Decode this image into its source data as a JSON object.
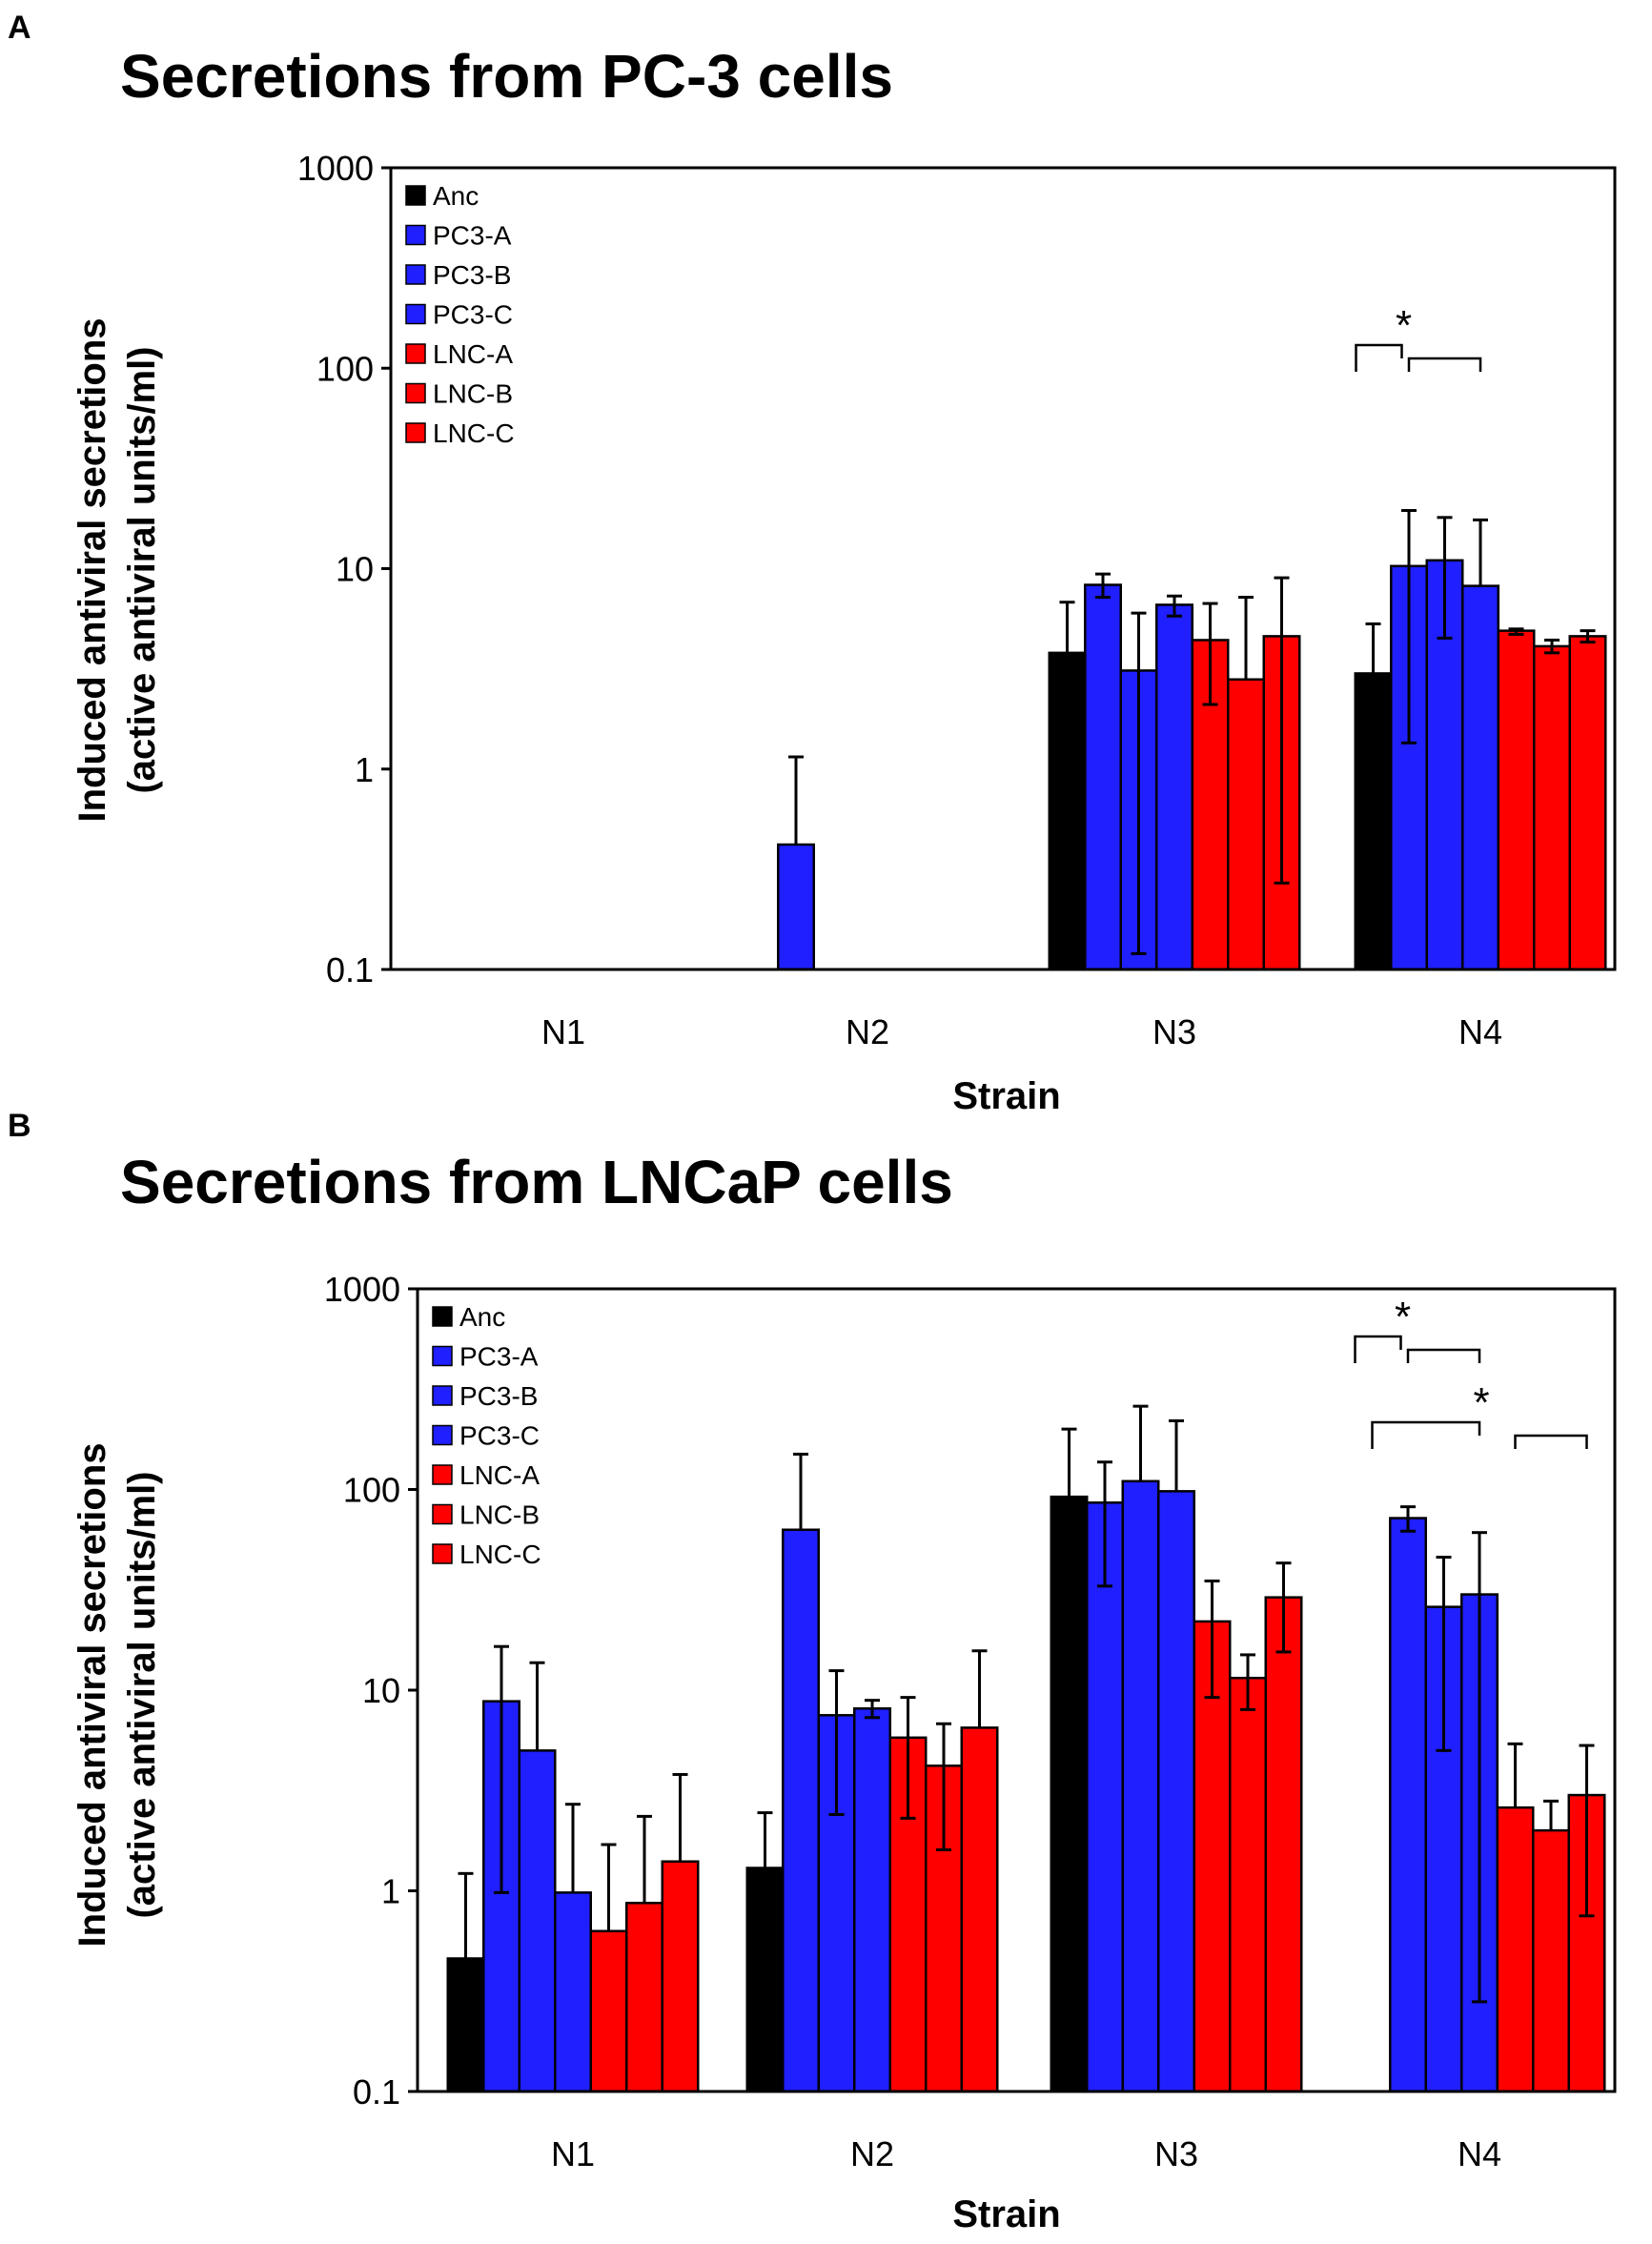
{
  "chart_data": [
    {
      "panel_letter": "A",
      "type": "bar",
      "title": "Secretions from PC-3 cells",
      "xlabel": "Strain",
      "ylabel_line1": "Induced antiviral secretions",
      "ylabel_line2": "(active antiviral units/ml)",
      "yscale": "log",
      "ylim": [
        0.1,
        1000
      ],
      "yticks": [
        "0.1",
        "1",
        "10",
        "100",
        "1000"
      ],
      "categories": [
        "N1",
        "N2",
        "N3",
        "N4"
      ],
      "legend_position": "top-left",
      "series": [
        {
          "name": "Anc",
          "color": "#000000",
          "values": [
            null,
            null,
            3.8,
            3.0
          ],
          "err_hi": [
            null,
            null,
            6.8,
            5.3
          ],
          "err_lo": [
            null,
            null,
            null,
            null
          ]
        },
        {
          "name": "PC3-A",
          "color": "#1f1fff",
          "values": [
            null,
            0.42,
            8.3,
            10.3
          ],
          "err_hi": [
            null,
            1.15,
            9.4,
            19.5
          ],
          "err_lo": [
            null,
            null,
            7.2,
            1.35
          ]
        },
        {
          "name": "PC3-B",
          "color": "#1f1fff",
          "values": [
            null,
            null,
            3.1,
            11.0
          ],
          "err_hi": [
            null,
            null,
            6.0,
            18.0
          ],
          "err_lo": [
            null,
            null,
            0.12,
            4.5
          ]
        },
        {
          "name": "PC3-C",
          "color": "#1f1fff",
          "values": [
            null,
            null,
            6.6,
            8.2
          ],
          "err_hi": [
            null,
            null,
            7.3,
            17.5
          ],
          "err_lo": [
            null,
            null,
            5.8,
            null
          ]
        },
        {
          "name": "LNC-A",
          "color": "#ff0000",
          "values": [
            null,
            null,
            4.4,
            4.9
          ],
          "err_hi": [
            null,
            null,
            6.7,
            5.0
          ],
          "err_lo": [
            null,
            null,
            2.1,
            4.7
          ]
        },
        {
          "name": "LNC-B",
          "color": "#ff0000",
          "values": [
            null,
            null,
            2.8,
            4.1
          ],
          "err_hi": [
            null,
            null,
            7.2,
            4.4
          ],
          "err_lo": [
            null,
            null,
            null,
            3.8
          ]
        },
        {
          "name": "LNC-C",
          "color": "#ff0000",
          "values": [
            null,
            null,
            4.6,
            4.6
          ],
          "err_hi": [
            null,
            null,
            9.0,
            4.9
          ],
          "err_lo": [
            null,
            null,
            0.27,
            4.3
          ]
        }
      ],
      "significance": [
        {
          "category": "N4",
          "label": "*",
          "level": 1,
          "group_a": [
            "Anc"
          ],
          "group_b": [
            "PC3-A",
            "PC3-B",
            "PC3-C"
          ]
        }
      ]
    },
    {
      "panel_letter": "B",
      "type": "bar",
      "title": "Secretions from LNCaP cells",
      "xlabel": "Strain",
      "ylabel_line1": "Induced antiviral secretions",
      "ylabel_line2": "(active antiviral units/ml)",
      "yscale": "log",
      "ylim": [
        0.1,
        1000
      ],
      "yticks": [
        "0.1",
        "1",
        "10",
        "100",
        "1000"
      ],
      "categories": [
        "N1",
        "N2",
        "N3",
        "N4"
      ],
      "legend_position": "top-left",
      "series": [
        {
          "name": "Anc",
          "color": "#000000",
          "values": [
            0.46,
            1.3,
            92,
            null
          ],
          "err_hi": [
            1.22,
            2.45,
            200,
            null
          ],
          "err_lo": [
            null,
            null,
            null,
            null
          ]
        },
        {
          "name": "PC3-A",
          "color": "#1f1fff",
          "values": [
            8.8,
            63,
            86,
            72
          ],
          "err_hi": [
            16.5,
            150,
            137,
            82
          ],
          "err_lo": [
            0.98,
            null,
            33,
            62
          ]
        },
        {
          "name": "PC3-B",
          "color": "#1f1fff",
          "values": [
            5.0,
            7.5,
            110,
            26
          ],
          "err_hi": [
            13.7,
            12.5,
            260,
            46
          ],
          "err_lo": [
            null,
            2.4,
            null,
            5.0
          ]
        },
        {
          "name": "PC3-C",
          "color": "#1f1fff",
          "values": [
            0.98,
            8.1,
            98,
            30
          ],
          "err_hi": [
            2.7,
            8.9,
            220,
            61
          ],
          "err_lo": [
            null,
            7.3,
            null,
            0.28
          ]
        },
        {
          "name": "LNC-A",
          "color": "#ff0000",
          "values": [
            0.63,
            5.8,
            22,
            2.6
          ],
          "err_hi": [
            1.7,
            9.2,
            35,
            5.4
          ],
          "err_lo": [
            null,
            2.3,
            9.2,
            null
          ]
        },
        {
          "name": "LNC-B",
          "color": "#ff0000",
          "values": [
            0.87,
            4.2,
            11.5,
            2.0
          ],
          "err_hi": [
            2.35,
            6.8,
            15,
            2.8
          ],
          "err_lo": [
            null,
            1.6,
            8.0,
            null
          ]
        },
        {
          "name": "LNC-C",
          "color": "#ff0000",
          "values": [
            1.4,
            6.5,
            29,
            3.0
          ],
          "err_hi": [
            3.8,
            15.7,
            43,
            5.3
          ],
          "err_lo": [
            null,
            null,
            15.5,
            0.75
          ]
        }
      ],
      "significance": [
        {
          "category": "N4",
          "label": "*",
          "level": 2,
          "group_a": [
            "Anc"
          ],
          "group_b": [
            "PC3-A",
            "PC3-B",
            "PC3-C"
          ]
        },
        {
          "category": "N4",
          "label": "*",
          "level": 1,
          "group_a": [
            "Anc",
            "PC3-A",
            "PC3-B",
            "PC3-C"
          ],
          "group_b": [
            "LNC-A",
            "LNC-B",
            "LNC-C"
          ]
        }
      ]
    }
  ]
}
